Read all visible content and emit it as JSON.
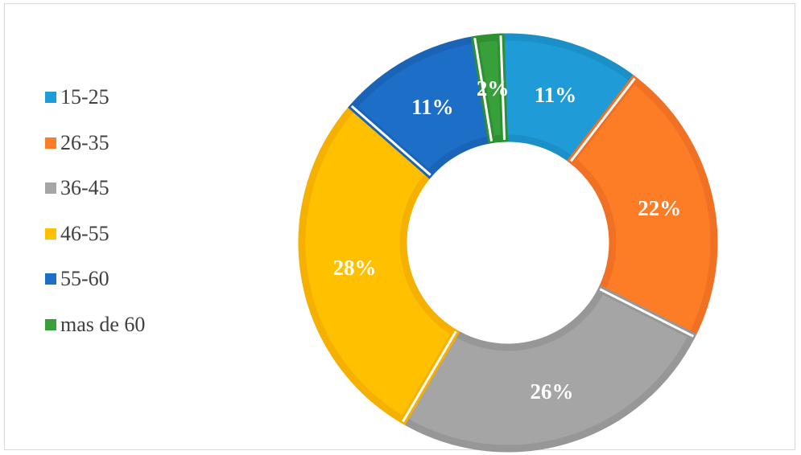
{
  "chart_data": {
    "type": "donut",
    "title": "",
    "categories": [
      "15-25",
      "26-35",
      "36-45",
      "46-55",
      "55-60",
      "mas de 60"
    ],
    "values": [
      11,
      22,
      26,
      28,
      11,
      2
    ],
    "unit": "%",
    "data_labels": [
      "11%",
      "22%",
      "26%",
      "28%",
      "11%",
      "2%"
    ],
    "colors": [
      "#1f9bd7",
      "#fd7d27",
      "#a5a5a5",
      "#ffc000",
      "#1c6ec6",
      "#37a03b"
    ],
    "border_colors": [
      "#1b8fc8",
      "#f07024",
      "#979797",
      "#f5b000",
      "#1a64b8",
      "#2f9031"
    ],
    "legend_position": "left",
    "start_angle_deg": -2,
    "direction": "clockwise"
  }
}
